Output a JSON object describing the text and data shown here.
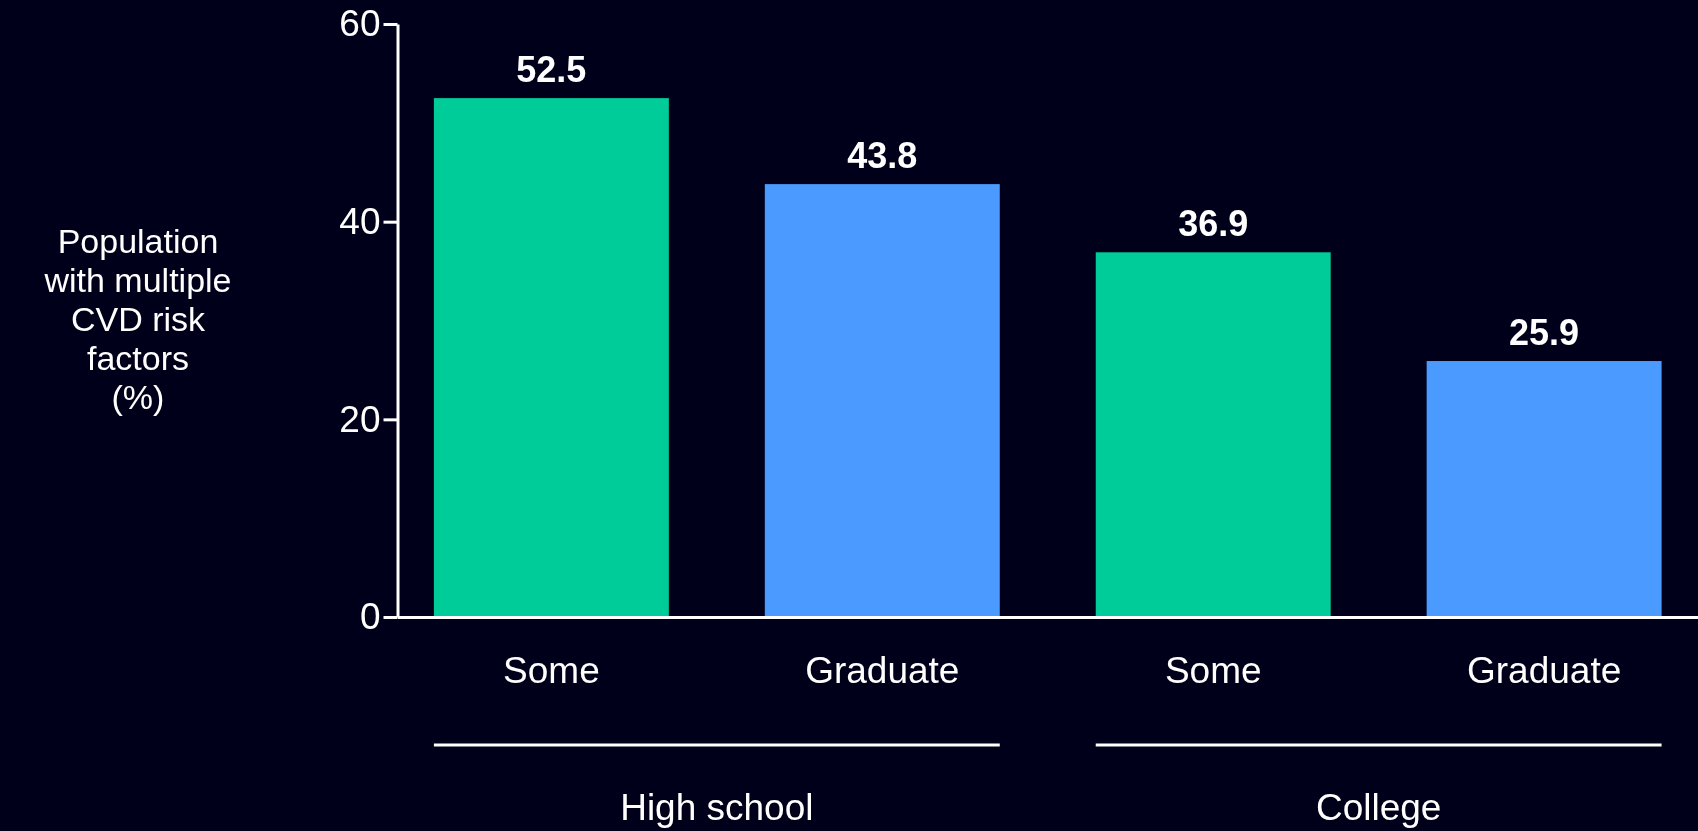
{
  "chart_data": {
    "type": "bar",
    "ylabel": "Population\nwith multiple\nCVD risk\nfactors\n(%)",
    "categories": [
      "Some",
      "Graduate",
      "Some",
      "Graduate"
    ],
    "values": [
      52.5,
      43.8,
      36.9,
      25.9
    ],
    "colors": [
      "#00cc99",
      "#4a9aff",
      "#00cc99",
      "#4a9aff"
    ],
    "ylim": [
      0,
      60
    ],
    "yticks": [
      0,
      20,
      40,
      60
    ],
    "grid": false,
    "data_labels": true,
    "annotations": [
      "High school",
      "College"
    ]
  }
}
